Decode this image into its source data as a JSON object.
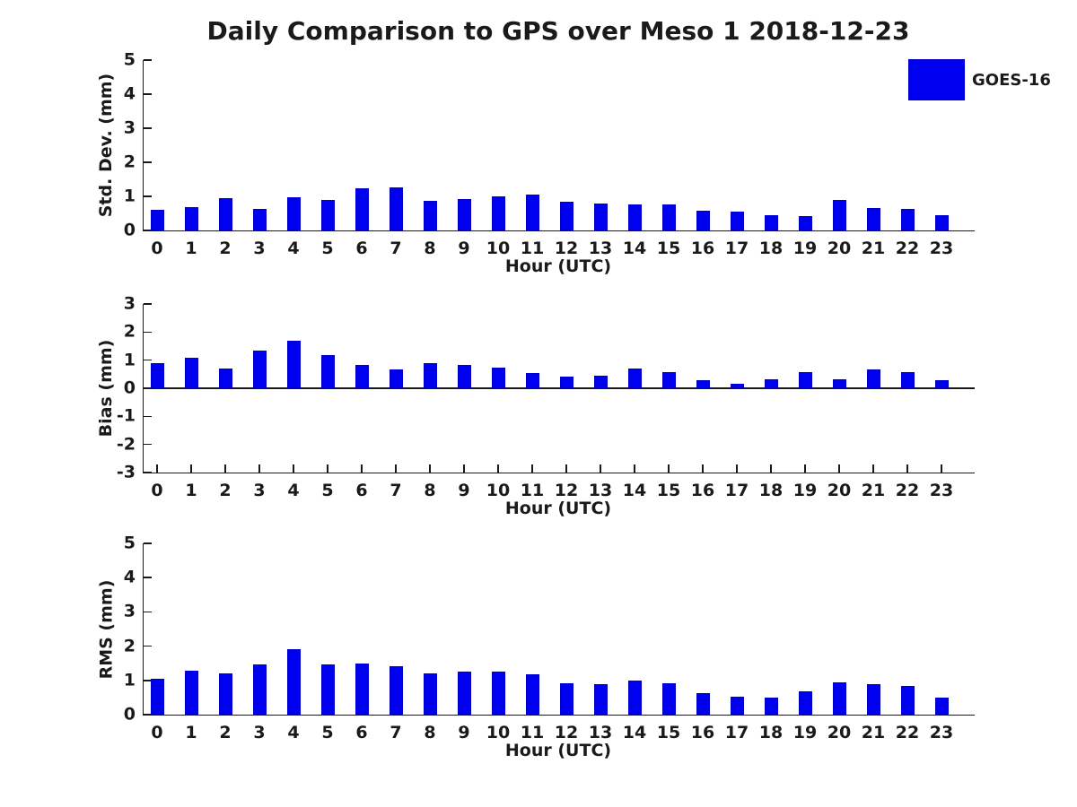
{
  "title": "Daily Comparison to GPS over Meso 1 2018-12-23",
  "legend": {
    "label": "GOES-16",
    "position": "top-right"
  },
  "colors": {
    "bar": "#0000F0",
    "bar_edge": "#0000C8",
    "axis": "#1a1a1a",
    "text": "#1a1a1a",
    "background": "#ffffff"
  },
  "chart_data": [
    {
      "type": "bar",
      "panel": "top",
      "ylabel": "Std. Dev. (mm)",
      "xlabel": "Hour (UTC)",
      "ylim": [
        0,
        5
      ],
      "yticks": [
        0,
        1,
        2,
        3,
        4,
        5
      ],
      "grid": false,
      "categories": [
        "0",
        "1",
        "2",
        "3",
        "4",
        "5",
        "6",
        "7",
        "8",
        "9",
        "10",
        "11",
        "12",
        "13",
        "14",
        "15",
        "16",
        "17",
        "18",
        "19",
        "20",
        "21",
        "22",
        "23"
      ],
      "series": [
        {
          "name": "GOES-16",
          "values": [
            0.6,
            0.68,
            0.96,
            0.64,
            0.98,
            0.89,
            1.23,
            1.26,
            0.86,
            0.93,
            1.01,
            1.06,
            0.83,
            0.78,
            0.76,
            0.76,
            0.59,
            0.55,
            0.45,
            0.42,
            0.9,
            0.67,
            0.64,
            0.44
          ]
        }
      ]
    },
    {
      "type": "bar",
      "panel": "middle",
      "ylabel": "Bias (mm)",
      "xlabel": "Hour (UTC)",
      "ylim": [
        -3,
        3
      ],
      "yticks": [
        -3,
        -2,
        -1,
        0,
        1,
        2,
        3
      ],
      "grid": false,
      "categories": [
        "0",
        "1",
        "2",
        "3",
        "4",
        "5",
        "6",
        "7",
        "8",
        "9",
        "10",
        "11",
        "12",
        "13",
        "14",
        "15",
        "16",
        "17",
        "18",
        "19",
        "20",
        "21",
        "22",
        "23"
      ],
      "series": [
        {
          "name": "GOES-16",
          "values": [
            0.9,
            1.09,
            0.71,
            1.34,
            1.68,
            1.18,
            0.84,
            0.67,
            0.89,
            0.84,
            0.74,
            0.53,
            0.4,
            0.46,
            0.71,
            0.59,
            0.3,
            0.15,
            0.31,
            0.59,
            0.31,
            0.66,
            0.59,
            0.3
          ]
        }
      ]
    },
    {
      "type": "bar",
      "panel": "bottom",
      "ylabel": "RMS (mm)",
      "xlabel": "Hour (UTC)",
      "ylim": [
        0,
        5
      ],
      "yticks": [
        0,
        1,
        2,
        3,
        4,
        5
      ],
      "grid": false,
      "categories": [
        "0",
        "1",
        "2",
        "3",
        "4",
        "5",
        "6",
        "7",
        "8",
        "9",
        "10",
        "11",
        "12",
        "13",
        "14",
        "15",
        "16",
        "17",
        "18",
        "19",
        "20",
        "21",
        "22",
        "23"
      ],
      "series": [
        {
          "name": "GOES-16",
          "values": [
            1.06,
            1.27,
            1.2,
            1.46,
            1.92,
            1.46,
            1.48,
            1.41,
            1.2,
            1.25,
            1.25,
            1.17,
            0.91,
            0.88,
            1.0,
            0.92,
            0.62,
            0.52,
            0.5,
            0.69,
            0.93,
            0.9,
            0.85,
            0.5
          ]
        }
      ]
    }
  ]
}
